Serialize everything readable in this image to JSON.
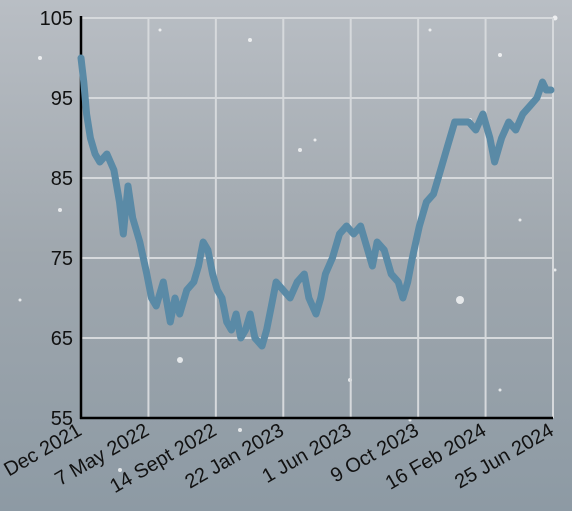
{
  "chart_data": {
    "type": "line",
    "title": "",
    "xlabel": "",
    "ylabel": "",
    "ylim": [
      55,
      105
    ],
    "yticks": [
      55,
      65,
      75,
      85,
      95,
      105
    ],
    "xtick_labels": [
      "Dec 2021",
      "7 May 2022",
      "14 Sept 2022",
      "22 Jan 2023",
      "1 Jun 2023",
      "9 Oct 2023",
      "16 Feb 2024",
      "25 Jun 2024"
    ],
    "grid": true,
    "series_color": "#5a8aa6",
    "background_color": "#9aa3ab",
    "series": [
      {
        "values": [
          [
            0,
            100
          ],
          [
            0.06,
            97
          ],
          [
            0.12,
            93
          ],
          [
            0.2,
            90
          ],
          [
            0.3,
            88
          ],
          [
            0.4,
            87
          ],
          [
            0.55,
            88
          ],
          [
            0.7,
            86
          ],
          [
            0.82,
            82
          ],
          [
            0.9,
            78
          ],
          [
            1.0,
            84
          ],
          [
            1.1,
            80
          ],
          [
            1.25,
            77
          ],
          [
            1.4,
            73
          ],
          [
            1.5,
            70
          ],
          [
            1.6,
            69
          ],
          [
            1.75,
            72
          ],
          [
            1.9,
            67
          ],
          [
            2.0,
            70
          ],
          [
            2.1,
            68
          ],
          [
            2.25,
            71
          ],
          [
            2.4,
            72
          ],
          [
            2.5,
            74
          ],
          [
            2.6,
            77
          ],
          [
            2.7,
            76
          ],
          [
            2.8,
            73
          ],
          [
            2.9,
            71
          ],
          [
            3.0,
            70
          ],
          [
            3.1,
            67
          ],
          [
            3.2,
            66
          ],
          [
            3.3,
            68
          ],
          [
            3.4,
            65
          ],
          [
            3.5,
            66
          ],
          [
            3.6,
            68
          ],
          [
            3.7,
            65
          ],
          [
            3.85,
            64
          ],
          [
            3.95,
            66
          ],
          [
            4.05,
            69
          ],
          [
            4.15,
            72
          ],
          [
            4.3,
            71
          ],
          [
            4.45,
            70
          ],
          [
            4.6,
            72
          ],
          [
            4.75,
            73
          ],
          [
            4.85,
            70
          ],
          [
            5.0,
            68
          ],
          [
            5.1,
            70
          ],
          [
            5.2,
            73
          ],
          [
            5.35,
            75
          ],
          [
            5.5,
            78
          ],
          [
            5.65,
            79
          ],
          [
            5.8,
            78
          ],
          [
            5.95,
            79
          ],
          [
            6.1,
            76
          ],
          [
            6.2,
            74
          ],
          [
            6.3,
            77
          ],
          [
            6.45,
            76
          ],
          [
            6.6,
            73
          ],
          [
            6.75,
            72
          ],
          [
            6.85,
            70
          ],
          [
            6.95,
            72
          ],
          [
            7.05,
            75
          ],
          [
            7.2,
            79
          ],
          [
            7.35,
            82
          ],
          [
            7.5,
            83
          ],
          [
            7.65,
            86
          ],
          [
            7.8,
            89
          ],
          [
            7.95,
            92
          ],
          [
            8.1,
            92
          ],
          [
            8.25,
            92
          ],
          [
            8.4,
            91
          ],
          [
            8.55,
            93
          ],
          [
            8.7,
            90
          ],
          [
            8.8,
            87
          ],
          [
            8.95,
            90
          ],
          [
            9.1,
            92
          ],
          [
            9.25,
            91
          ],
          [
            9.4,
            93
          ],
          [
            9.55,
            94
          ],
          [
            9.7,
            95
          ],
          [
            9.82,
            97
          ],
          [
            9.9,
            96
          ],
          [
            10.0,
            96
          ]
        ]
      }
    ]
  }
}
